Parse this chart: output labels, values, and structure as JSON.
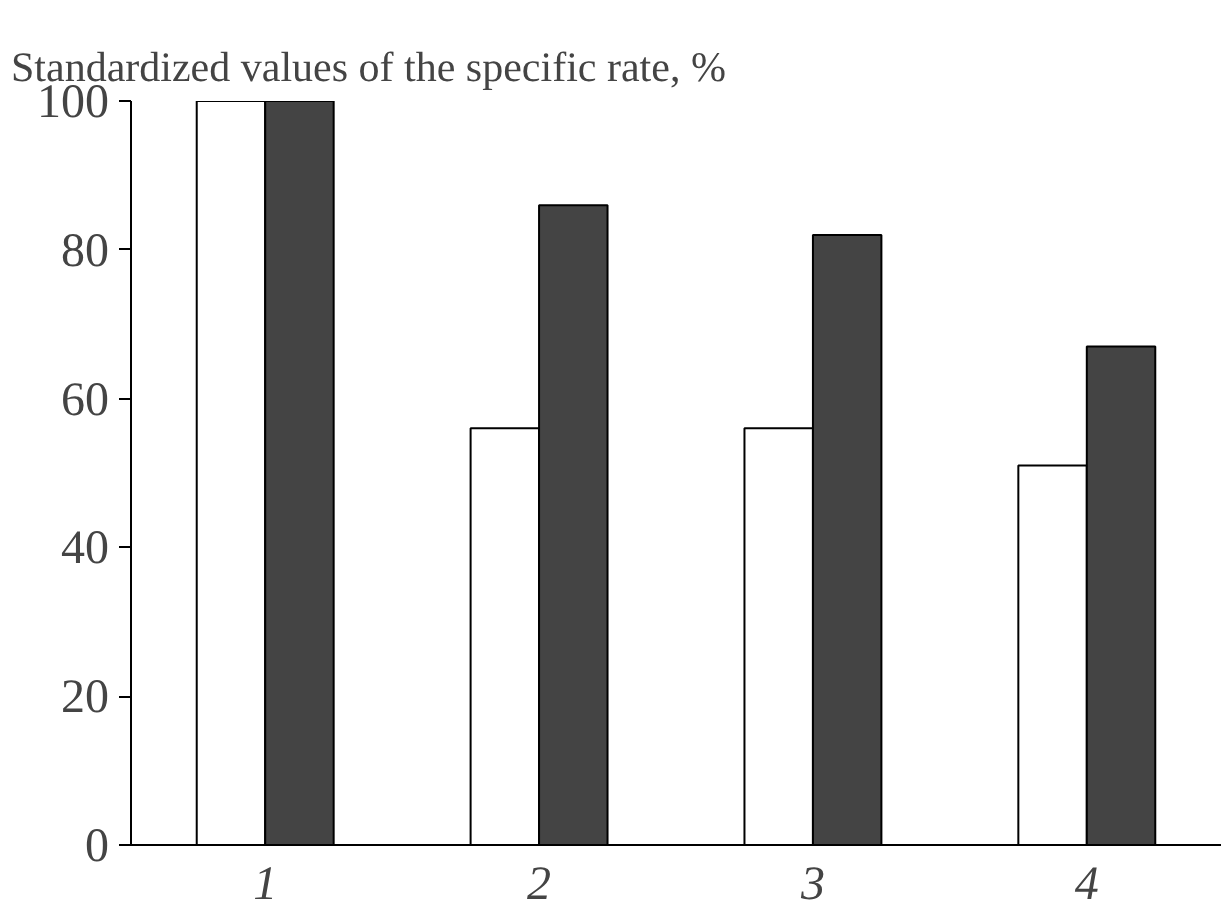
{
  "chart_data": {
    "type": "bar",
    "ylabel": "Standardized values of the specific rate, %",
    "categories": [
      "1",
      "2",
      "3",
      "4"
    ],
    "series": [
      {
        "color": "#ffffff",
        "values": [
          100,
          56,
          56,
          51
        ]
      },
      {
        "color": "#444444",
        "values": [
          100,
          86,
          82,
          67
        ]
      }
    ],
    "ylim": [
      0,
      100
    ],
    "yticks": [
      0,
      20,
      40,
      60,
      80,
      100
    ],
    "grid": false
  }
}
